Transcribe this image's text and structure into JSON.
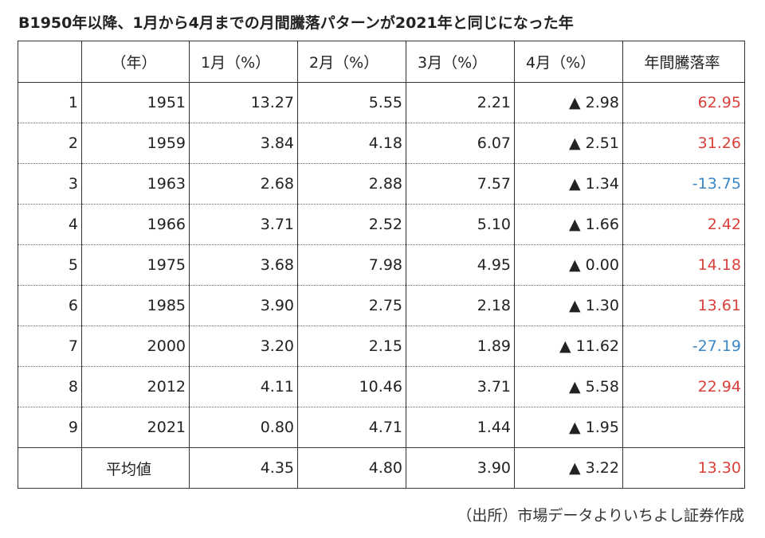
{
  "title": "B1950年以降、1月から4月までの月間騰落パターンが2021年と同じになった年",
  "headers": {
    "index": "",
    "year": "（年）",
    "jan": "1月（%）",
    "feb": "2月（%）",
    "mar": "3月（%）",
    "apr": "4月（%）",
    "annual": "年間騰落率"
  },
  "rows": [
    {
      "index": "1",
      "year": "1951",
      "jan": "13.27",
      "feb": "5.55",
      "mar": "2.21",
      "apr": "▲ 2.98",
      "annual": "62.95",
      "annual_sign": "pos"
    },
    {
      "index": "2",
      "year": "1959",
      "jan": "3.84",
      "feb": "4.18",
      "mar": "6.07",
      "apr": "▲ 2.51",
      "annual": "31.26",
      "annual_sign": "pos"
    },
    {
      "index": "3",
      "year": "1963",
      "jan": "2.68",
      "feb": "2.88",
      "mar": "7.57",
      "apr": "▲ 1.34",
      "annual": "-13.75",
      "annual_sign": "neg"
    },
    {
      "index": "4",
      "year": "1966",
      "jan": "3.71",
      "feb": "2.52",
      "mar": "5.10",
      "apr": "▲ 1.66",
      "annual": "2.42",
      "annual_sign": "pos"
    },
    {
      "index": "5",
      "year": "1975",
      "jan": "3.68",
      "feb": "7.98",
      "mar": "4.95",
      "apr": "▲ 0.00",
      "annual": "14.18",
      "annual_sign": "pos"
    },
    {
      "index": "6",
      "year": "1985",
      "jan": "3.90",
      "feb": "2.75",
      "mar": "2.18",
      "apr": "▲ 1.30",
      "annual": "13.61",
      "annual_sign": "pos"
    },
    {
      "index": "7",
      "year": "2000",
      "jan": "3.20",
      "feb": "2.15",
      "mar": "1.89",
      "apr": "▲ 11.62",
      "annual": "-27.19",
      "annual_sign": "neg"
    },
    {
      "index": "8",
      "year": "2012",
      "jan": "4.11",
      "feb": "10.46",
      "mar": "3.71",
      "apr": "▲ 5.58",
      "annual": "22.94",
      "annual_sign": "pos"
    },
    {
      "index": "9",
      "year": "2021",
      "jan": "0.80",
      "feb": "4.71",
      "mar": "1.44",
      "apr": "▲ 1.95",
      "annual": "",
      "annual_sign": "pos"
    }
  ],
  "average": {
    "index": "",
    "year": "平均値",
    "jan": "4.35",
    "feb": "4.80",
    "mar": "3.90",
    "apr": "▲ 3.22",
    "annual": "13.30",
    "annual_sign": "pos"
  },
  "source": "（出所）市場データよりいちよし証券作成",
  "colors": {
    "positive": "#d9403a",
    "negative": "#3a86c6"
  }
}
